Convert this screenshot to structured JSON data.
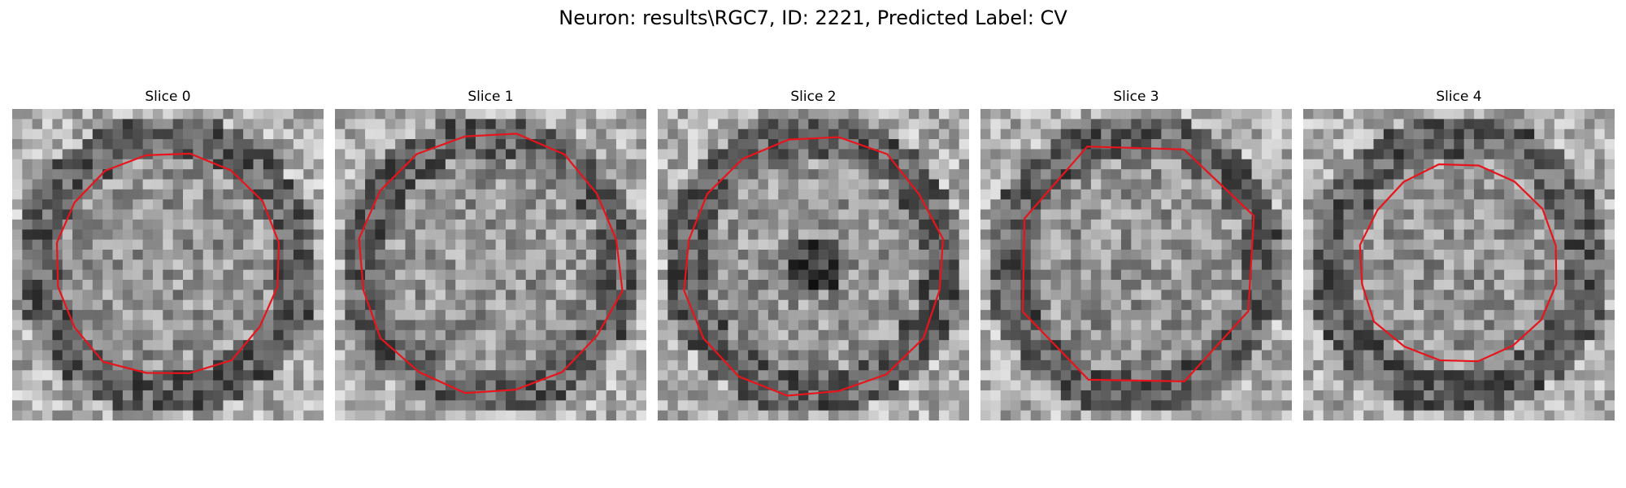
{
  "figure": {
    "title": "Neuron: results\\RGC7, ID: 2221, Predicted Label: CV"
  },
  "contour_color": "#e8141c",
  "slices": [
    {
      "title": "Slice 0",
      "seed": 11,
      "contour_radius": 0.73,
      "vertices": 16
    },
    {
      "title": "Slice 1",
      "seed": 23,
      "contour_radius": 0.84,
      "vertices": 16
    },
    {
      "title": "Slice 2",
      "seed": 37,
      "contour_radius": 0.84,
      "vertices": 16
    },
    {
      "title": "Slice 3",
      "seed": 41,
      "contour_radius": 0.8,
      "vertices": 8
    },
    {
      "title": "Slice 4",
      "seed": 53,
      "contour_radius": 0.64,
      "vertices": 16
    }
  ]
}
